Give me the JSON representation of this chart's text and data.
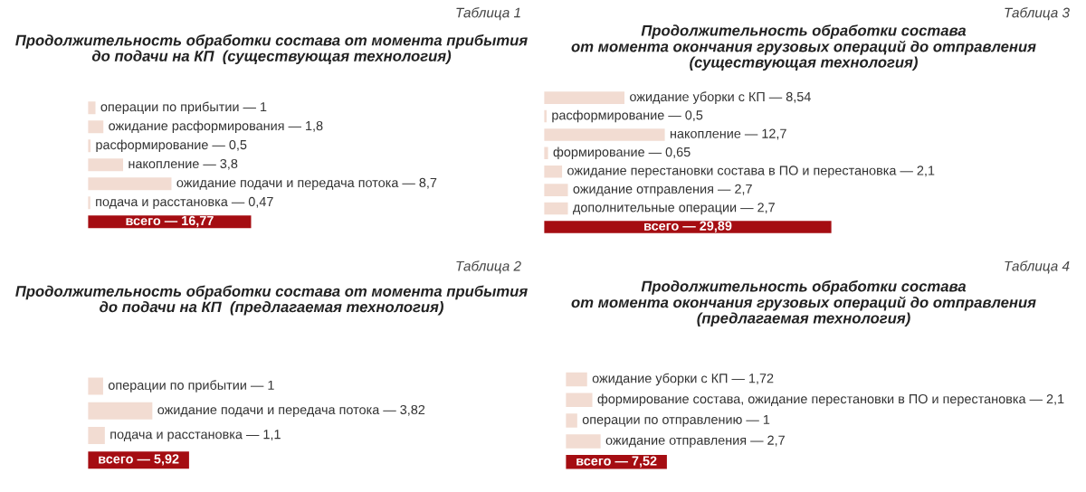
{
  "chart_data": [
    {
      "type": "bar",
      "orientation": "horizontal",
      "title": "Продолжительность обработки состава от момента прибытия\nдо подачи на КП  (существующая технология)",
      "annotations": [
        "Таблица 1"
      ],
      "categories": [
        null,
        null,
        null,
        null,
        null,
        null,
        null
      ],
      "values": [
        1,
        1.8,
        0.5,
        3.8,
        8.7,
        0.47,
        16.77
      ],
      "colors": [
        "#f2dcd2",
        "#f2dcd2",
        "#f2dcd2",
        "#f2dcd2",
        "#f2dcd2",
        "#f2dcd2",
        "#a50d12"
      ],
      "value_labels": [
        "операции по прибытии — 1",
        "ожидание расформирования — 1,8",
        "расформирование — 0,5",
        "накопление — 3,8",
        "ожидание подачи и передача потока — 8,7",
        "подача и расстановка — 0,47",
        "всего — 16,77"
      ]
    },
    {
      "type": "bar",
      "orientation": "horizontal",
      "title": "Продолжительность обработки состава\nот момента окончания грузовых операций до отправления\n(существующая технология)",
      "annotations": [
        "Таблица 3"
      ],
      "categories": [
        null,
        null,
        null,
        null,
        null,
        null,
        null,
        null
      ],
      "values": [
        8.54,
        0.5,
        12.7,
        0.65,
        2.1,
        2.7,
        2.7,
        29.89
      ],
      "colors": [
        "#f2dcd2",
        "#f2dcd2",
        "#f2dcd2",
        "#f2dcd2",
        "#f2dcd2",
        "#f2dcd2",
        "#f2dcd2",
        "#a50d12"
      ],
      "value_labels": [
        "ожидание уборки с КП — 8,54",
        "расформирование — 0,5",
        "накопление — 12,7",
        "формирование — 0,65",
        "ожидание перестановки состава в ПО и перестановка — 2,1",
        "ожидание отправления — 2,7",
        "дополнительные операции — 2,7",
        "всего — 29,89"
      ]
    },
    {
      "type": "bar",
      "orientation": "horizontal",
      "title": "Продолжительность обработки состава от момента прибытия\nдо подачи на КП  (предлагаемая технология)",
      "annotations": [
        "Таблица 2"
      ],
      "categories": [
        null,
        null,
        null,
        null
      ],
      "values": [
        1,
        3.82,
        1.1,
        5.92
      ],
      "colors": [
        "#f2dcd2",
        "#f2dcd2",
        "#f2dcd2",
        "#a50d12"
      ],
      "value_labels": [
        "операции по прибытии — 1",
        "ожидание подачи и передача потока — 3,82",
        "подача и расстановка — 1,1",
        "всего — 5,92"
      ]
    },
    {
      "type": "bar",
      "orientation": "horizontal",
      "title": "Продолжительность обработки состава\nот момента окончания грузовых операций до отправления\n(предлагаемая технология)",
      "annotations": [
        "Таблица 4"
      ],
      "categories": [
        null,
        null,
        null,
        null,
        null
      ],
      "values": [
        1.72,
        2.1,
        1,
        2.7,
        7.52
      ],
      "colors": [
        "#f2dcd2",
        "#f2dcd2",
        "#f2dcd2",
        "#f2dcd2",
        "#a50d12"
      ],
      "value_labels": [
        "ожидание уборки с КП — 1,72",
        "формирование состава, ожидание перестановки в ПО и перестановка — 2,1",
        "операции по отправлению — 1",
        "ожидание отправления — 2,7",
        "всего — 7,52"
      ]
    }
  ]
}
